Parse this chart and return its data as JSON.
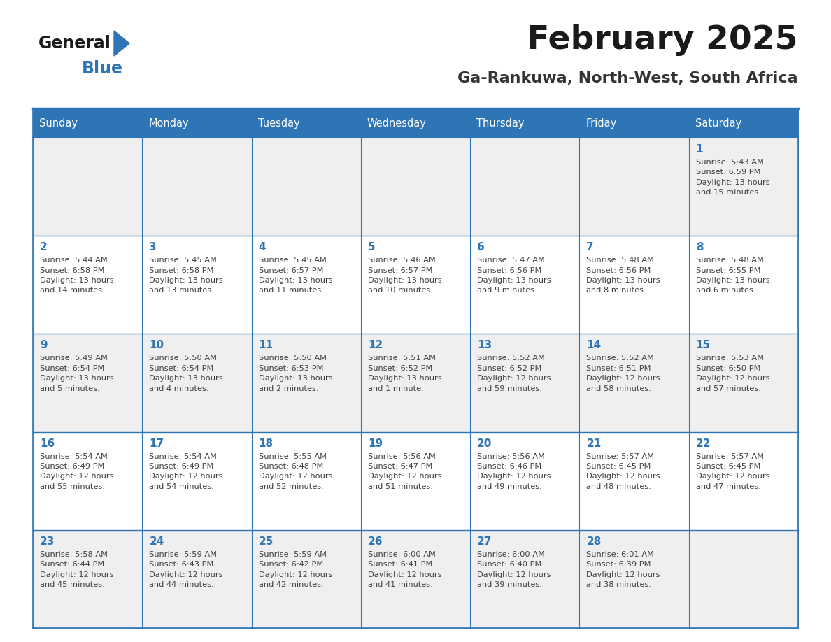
{
  "title": "February 2025",
  "subtitle": "Ga-Rankuwa, North-West, South Africa",
  "days_of_week": [
    "Sunday",
    "Monday",
    "Tuesday",
    "Wednesday",
    "Thursday",
    "Friday",
    "Saturday"
  ],
  "header_bg": "#2E75B6",
  "header_text": "#FFFFFF",
  "cell_bg_light": "#EFEFEF",
  "cell_bg_white": "#FFFFFF",
  "border_color": "#2E75B6",
  "day_number_color": "#2E75B6",
  "text_color": "#404040",
  "logo_general_color": "#1a1a1a",
  "logo_blue_color": "#2E75B6",
  "calendar_data": [
    [
      {
        "day": null,
        "info": null
      },
      {
        "day": null,
        "info": null
      },
      {
        "day": null,
        "info": null
      },
      {
        "day": null,
        "info": null
      },
      {
        "day": null,
        "info": null
      },
      {
        "day": null,
        "info": null
      },
      {
        "day": 1,
        "info": "Sunrise: 5:43 AM\nSunset: 6:59 PM\nDaylight: 13 hours\nand 15 minutes."
      }
    ],
    [
      {
        "day": 2,
        "info": "Sunrise: 5:44 AM\nSunset: 6:58 PM\nDaylight: 13 hours\nand 14 minutes."
      },
      {
        "day": 3,
        "info": "Sunrise: 5:45 AM\nSunset: 6:58 PM\nDaylight: 13 hours\nand 13 minutes."
      },
      {
        "day": 4,
        "info": "Sunrise: 5:45 AM\nSunset: 6:57 PM\nDaylight: 13 hours\nand 11 minutes."
      },
      {
        "day": 5,
        "info": "Sunrise: 5:46 AM\nSunset: 6:57 PM\nDaylight: 13 hours\nand 10 minutes."
      },
      {
        "day": 6,
        "info": "Sunrise: 5:47 AM\nSunset: 6:56 PM\nDaylight: 13 hours\nand 9 minutes."
      },
      {
        "day": 7,
        "info": "Sunrise: 5:48 AM\nSunset: 6:56 PM\nDaylight: 13 hours\nand 8 minutes."
      },
      {
        "day": 8,
        "info": "Sunrise: 5:48 AM\nSunset: 6:55 PM\nDaylight: 13 hours\nand 6 minutes."
      }
    ],
    [
      {
        "day": 9,
        "info": "Sunrise: 5:49 AM\nSunset: 6:54 PM\nDaylight: 13 hours\nand 5 minutes."
      },
      {
        "day": 10,
        "info": "Sunrise: 5:50 AM\nSunset: 6:54 PM\nDaylight: 13 hours\nand 4 minutes."
      },
      {
        "day": 11,
        "info": "Sunrise: 5:50 AM\nSunset: 6:53 PM\nDaylight: 13 hours\nand 2 minutes."
      },
      {
        "day": 12,
        "info": "Sunrise: 5:51 AM\nSunset: 6:52 PM\nDaylight: 13 hours\nand 1 minute."
      },
      {
        "day": 13,
        "info": "Sunrise: 5:52 AM\nSunset: 6:52 PM\nDaylight: 12 hours\nand 59 minutes."
      },
      {
        "day": 14,
        "info": "Sunrise: 5:52 AM\nSunset: 6:51 PM\nDaylight: 12 hours\nand 58 minutes."
      },
      {
        "day": 15,
        "info": "Sunrise: 5:53 AM\nSunset: 6:50 PM\nDaylight: 12 hours\nand 57 minutes."
      }
    ],
    [
      {
        "day": 16,
        "info": "Sunrise: 5:54 AM\nSunset: 6:49 PM\nDaylight: 12 hours\nand 55 minutes."
      },
      {
        "day": 17,
        "info": "Sunrise: 5:54 AM\nSunset: 6:49 PM\nDaylight: 12 hours\nand 54 minutes."
      },
      {
        "day": 18,
        "info": "Sunrise: 5:55 AM\nSunset: 6:48 PM\nDaylight: 12 hours\nand 52 minutes."
      },
      {
        "day": 19,
        "info": "Sunrise: 5:56 AM\nSunset: 6:47 PM\nDaylight: 12 hours\nand 51 minutes."
      },
      {
        "day": 20,
        "info": "Sunrise: 5:56 AM\nSunset: 6:46 PM\nDaylight: 12 hours\nand 49 minutes."
      },
      {
        "day": 21,
        "info": "Sunrise: 5:57 AM\nSunset: 6:45 PM\nDaylight: 12 hours\nand 48 minutes."
      },
      {
        "day": 22,
        "info": "Sunrise: 5:57 AM\nSunset: 6:45 PM\nDaylight: 12 hours\nand 47 minutes."
      }
    ],
    [
      {
        "day": 23,
        "info": "Sunrise: 5:58 AM\nSunset: 6:44 PM\nDaylight: 12 hours\nand 45 minutes."
      },
      {
        "day": 24,
        "info": "Sunrise: 5:59 AM\nSunset: 6:43 PM\nDaylight: 12 hours\nand 44 minutes."
      },
      {
        "day": 25,
        "info": "Sunrise: 5:59 AM\nSunset: 6:42 PM\nDaylight: 12 hours\nand 42 minutes."
      },
      {
        "day": 26,
        "info": "Sunrise: 6:00 AM\nSunset: 6:41 PM\nDaylight: 12 hours\nand 41 minutes."
      },
      {
        "day": 27,
        "info": "Sunrise: 6:00 AM\nSunset: 6:40 PM\nDaylight: 12 hours\nand 39 minutes."
      },
      {
        "day": 28,
        "info": "Sunrise: 6:01 AM\nSunset: 6:39 PM\nDaylight: 12 hours\nand 38 minutes."
      },
      {
        "day": null,
        "info": null
      }
    ]
  ]
}
